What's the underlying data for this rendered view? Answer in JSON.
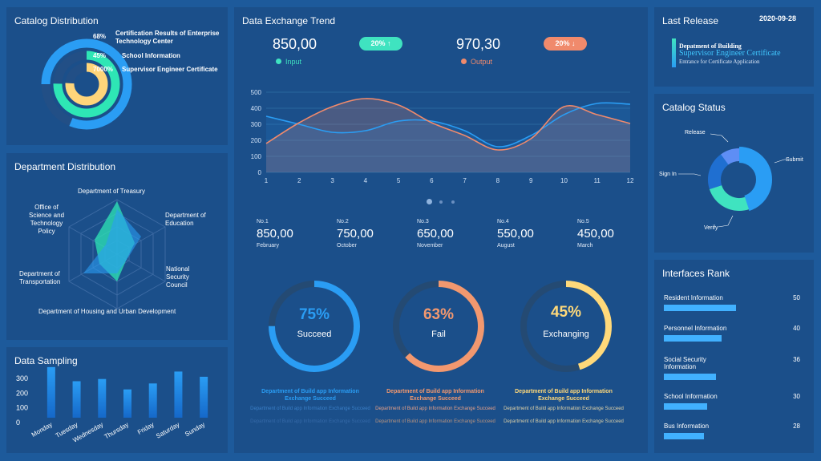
{
  "catalog_distribution": {
    "title": "Catalog Distribution",
    "items": [
      {
        "pct": "68%",
        "label": "Certification Results of Enterprise Technology Center"
      },
      {
        "pct": "45%",
        "label": "School Information"
      },
      {
        "pct": "7000%",
        "label": "Supervisor Engineer Certificate"
      }
    ],
    "colors": [
      "#2a9df4",
      "#2ee6b5",
      "#ffd57a"
    ]
  },
  "department_distribution": {
    "title": "Department Distribution",
    "axes": [
      "Department of Treasury",
      "Department of Education",
      "National Security Council",
      "Department of Housing and Urban Development",
      "Department of Transportation",
      "Office of Science and Technology Policy"
    ]
  },
  "data_sampling": {
    "title": "Data Sampling",
    "chart_data": {
      "type": "bar",
      "categories": [
        "Monday",
        "Tuesday",
        "Wednesday",
        "Thursday",
        "Friday",
        "Saturday",
        "Sunday"
      ],
      "values": [
        340,
        245,
        260,
        190,
        230,
        310,
        275
      ],
      "ylim": [
        0,
        350
      ],
      "yticks": [
        "300",
        "200",
        "100",
        "0"
      ]
    }
  },
  "exchange_trend": {
    "title": "Data Exchange Trend",
    "input_value": "850,00",
    "input_badge": "20% ↑",
    "input_label": "Input",
    "output_value": "970,30",
    "output_badge": "20% ↓",
    "output_label": "Output",
    "chart_data": {
      "type": "line",
      "x": [
        1,
        2,
        3,
        4,
        5,
        6,
        7,
        8,
        9,
        10,
        11,
        12
      ],
      "series": [
        {
          "name": "Input",
          "values": [
            350,
            300,
            250,
            260,
            320,
            320,
            260,
            160,
            230,
            360,
            430,
            425
          ],
          "color": "#2a9df4"
        },
        {
          "name": "Output",
          "values": [
            180,
            310,
            410,
            460,
            420,
            310,
            230,
            140,
            210,
            410,
            360,
            305
          ],
          "color": "#f08a6c"
        }
      ],
      "ylim": [
        0,
        500
      ],
      "yticks": [
        "500",
        "400",
        "300",
        "200",
        "100",
        "0"
      ]
    },
    "ranks": [
      {
        "no": "No.1",
        "value": "850,00",
        "month": "February"
      },
      {
        "no": "No.2",
        "value": "750,00",
        "month": "October"
      },
      {
        "no": "No.3",
        "value": "650,00",
        "month": "November"
      },
      {
        "no": "No.4",
        "value": "550,00",
        "month": "August"
      },
      {
        "no": "No.5",
        "value": "450,00",
        "month": "March"
      }
    ],
    "gauges": [
      {
        "pct": "75%",
        "label": "Succeed",
        "value": 0.75,
        "color": "#2a9df4",
        "caption": "Department of Build app Information Exchange Succeed",
        "sub1": "Department of Build app Information Exchange Succeed",
        "sub2": "Department of Build app Information Exchange Succeed"
      },
      {
        "pct": "63%",
        "label": "Fail",
        "value": 0.63,
        "color": "#f2986f",
        "caption": "Department of Build app Information Exchange Succeed",
        "sub1": "Department of Build app Information Exchange Succeed",
        "sub2": "Department of Build app Information Exchange Succeed"
      },
      {
        "pct": "45%",
        "label": "Exchanging",
        "value": 0.45,
        "color": "#ffd97a",
        "caption": "Department of Build app Information Exchange Succeed",
        "sub1": "Department of Build app Information Exchange Succeed",
        "sub2": "Department of Build app Information Exchange Succeed"
      }
    ]
  },
  "last_release": {
    "title": "Last Release",
    "date": "2020-09-28",
    "line1": "Depatment of Building",
    "line2": "Supervisor Engineer Certificate",
    "line3": "Entrance for Certificate Application"
  },
  "catalog_status": {
    "title": "Catalog Status",
    "labels": [
      "Release",
      "Submit",
      "Sign In",
      "Verify"
    ],
    "chart_data": {
      "type": "pie",
      "categories": [
        "Submit",
        "Verify",
        "Sign In",
        "Release"
      ],
      "values": [
        45,
        25,
        20,
        10
      ],
      "colors": [
        "#2a9df4",
        "#3fe3c0",
        "#1f6fd1",
        "#5e8ef5"
      ]
    }
  },
  "interfaces_rank": {
    "title": "Interfaces Rank",
    "items": [
      {
        "name": "Resident Information",
        "value": "50",
        "fraction": 0.5
      },
      {
        "name": "Personnel Information",
        "value": "40",
        "fraction": 0.4
      },
      {
        "name": "Social Security Information",
        "value": "36",
        "fraction": 0.36
      },
      {
        "name": "School Information",
        "value": "30",
        "fraction": 0.3
      },
      {
        "name": "Bus Information",
        "value": "28",
        "fraction": 0.28
      }
    ]
  }
}
